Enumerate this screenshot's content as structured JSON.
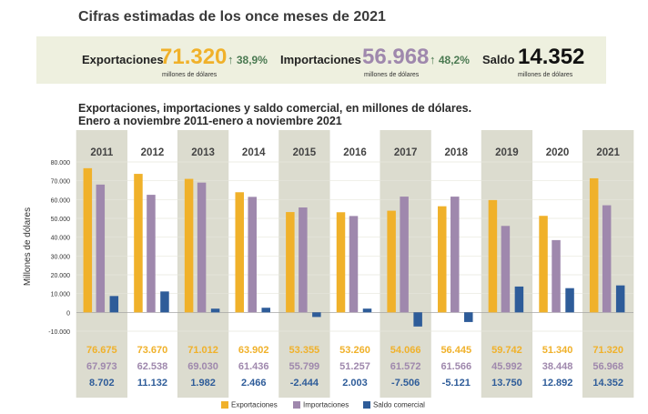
{
  "headline": "Cifras estimadas de los once meses de 2021",
  "summary": {
    "exportaciones": {
      "label": "Exportaciones",
      "value": "71.320",
      "unit": "millones de dólares",
      "change": "38,9%"
    },
    "importaciones": {
      "label": "Importaciones",
      "value": "56.968",
      "unit": "millones de dólares",
      "change": "48,2%"
    },
    "saldo": {
      "label": "Saldo",
      "value": "14.352",
      "unit": "millones de dólares"
    }
  },
  "colors": {
    "exportaciones": "#f0b12a",
    "importaciones": "#9f88ad",
    "saldo": "#2e5c99",
    "band_dark": "#dcdccf",
    "band_light": "#eeeee4",
    "panel": "#eef0df"
  },
  "chart_data": {
    "type": "bar",
    "title": "Exportaciones, importaciones y saldo comercial, en millones de dólares.",
    "subtitle": "Enero a noviembre 2011-enero a noviembre 2021",
    "ylabel": "Millones de dólares",
    "ylim": [
      -10000,
      80000
    ],
    "yticks": [
      -10000,
      0,
      10000,
      20000,
      30000,
      40000,
      50000,
      60000,
      70000,
      80000
    ],
    "ytick_labels": [
      "-10.000",
      "0",
      "10.000",
      "20.000",
      "30.000",
      "40.000",
      "50.000",
      "60.000",
      "70.000",
      "80.000"
    ],
    "categories": [
      "2011",
      "2012",
      "2013",
      "2014",
      "2015",
      "2016",
      "2017",
      "2018",
      "2019",
      "2020",
      "2021"
    ],
    "series": [
      {
        "name": "Exportaciones",
        "values": [
          76675,
          73670,
          71012,
          63902,
          53355,
          53260,
          54066,
          56445,
          59742,
          51340,
          71320
        ],
        "labels": [
          "76.675",
          "73.670",
          "71.012",
          "63.902",
          "53.355",
          "53.260",
          "54.066",
          "56.445",
          "59.742",
          "51.340",
          "71.320"
        ]
      },
      {
        "name": "Importaciones",
        "values": [
          67973,
          62538,
          69030,
          61436,
          55799,
          51257,
          61572,
          61566,
          45992,
          38448,
          56968
        ],
        "labels": [
          "67.973",
          "62.538",
          "69.030",
          "61.436",
          "55.799",
          "51.257",
          "61.572",
          "61.566",
          "45.992",
          "38.448",
          "56.968"
        ]
      },
      {
        "name": "Saldo comercial",
        "values": [
          8702,
          11132,
          1982,
          2466,
          -2444,
          2003,
          -7506,
          -5121,
          13750,
          12892,
          14352
        ],
        "labels": [
          "8.702",
          "11.132",
          "1.982",
          "2.466",
          "-2.444",
          "2.003",
          "-7.506",
          "-5.121",
          "13.750",
          "12.892",
          "14.352"
        ]
      }
    ],
    "grid": true,
    "legend": "bottom"
  }
}
